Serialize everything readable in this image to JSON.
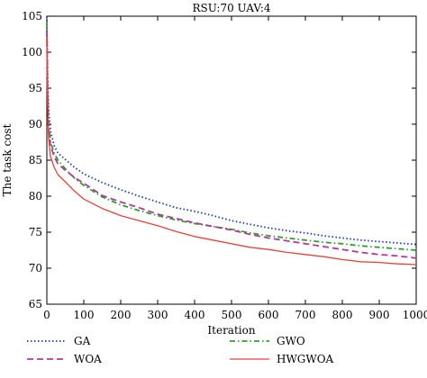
{
  "chart_data": {
    "type": "line",
    "title": "RSU:70 UAV:4",
    "xlabel": "Iteration",
    "ylabel": "The task cost",
    "xlim": [
      0,
      1000
    ],
    "ylim": [
      65,
      105
    ],
    "xticks": [
      0,
      100,
      200,
      300,
      400,
      500,
      600,
      700,
      800,
      900,
      1000
    ],
    "yticks": [
      65,
      70,
      75,
      80,
      85,
      90,
      95,
      100,
      105
    ],
    "x": [
      0,
      2,
      5,
      10,
      20,
      30,
      50,
      75,
      100,
      150,
      200,
      250,
      300,
      350,
      400,
      450,
      500,
      550,
      600,
      650,
      700,
      750,
      800,
      850,
      900,
      950,
      1000
    ],
    "series": [
      {
        "name": "GA",
        "color": "#1f3f9f",
        "dash": "dotted",
        "values": [
          105,
          97,
          92,
          89,
          87,
          86,
          85.1,
          84.0,
          83.1,
          81.9,
          80.9,
          80.0,
          79.2,
          78.4,
          77.9,
          77.3,
          76.6,
          76.1,
          75.6,
          75.2,
          74.9,
          74.5,
          74.2,
          73.9,
          73.7,
          73.5,
          73.3
        ]
      },
      {
        "name": "GWO",
        "color": "#2ea02e",
        "dash": "dashdot",
        "values": [
          104,
          95,
          90,
          87.5,
          86.0,
          85.0,
          83.8,
          82.5,
          81.5,
          79.9,
          78.8,
          78.0,
          77.3,
          76.7,
          76.2,
          75.8,
          75.4,
          74.9,
          74.5,
          74.2,
          73.9,
          73.6,
          73.4,
          73.1,
          72.9,
          72.7,
          72.5
        ]
      },
      {
        "name": "WOA",
        "color": "#b03a9c",
        "dash": "dashed",
        "values": [
          103,
          94,
          89,
          87.0,
          85.5,
          84.5,
          83.6,
          82.6,
          81.8,
          80.1,
          79.2,
          78.4,
          77.5,
          76.9,
          76.3,
          75.8,
          75.3,
          74.7,
          74.2,
          73.8,
          73.4,
          73.0,
          72.6,
          72.2,
          71.9,
          71.7,
          71.4
        ]
      },
      {
        "name": "HWGWOA",
        "color": "#e8413c",
        "dash": "solid",
        "values": [
          102,
          93,
          88,
          85.5,
          84.0,
          83.0,
          82.0,
          80.7,
          79.6,
          78.3,
          77.3,
          76.6,
          75.9,
          75.1,
          74.4,
          73.9,
          73.4,
          72.9,
          72.6,
          72.2,
          71.9,
          71.6,
          71.2,
          70.9,
          70.8,
          70.6,
          70.5
        ]
      }
    ],
    "grid": false,
    "legend_position": "bottom"
  }
}
